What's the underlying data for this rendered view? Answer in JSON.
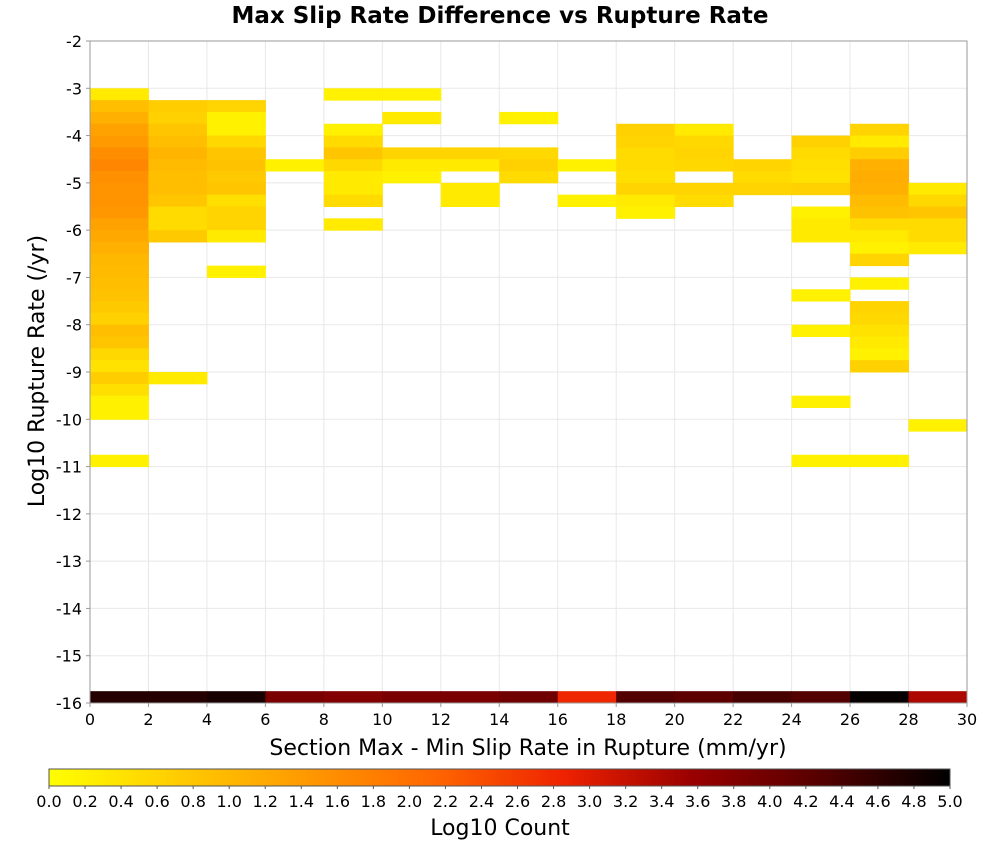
{
  "chart_data": {
    "type": "heatmap",
    "title": "Max Slip Rate Difference vs Rupture Rate",
    "xlabel": "Section Max - Min Slip Rate in Rupture (mm/yr)",
    "ylabel": "Log10 Rupture Rate (/yr)",
    "xlim": [
      0,
      30
    ],
    "ylim": [
      -16,
      -2
    ],
    "x_ticks": [
      "0",
      "2",
      "4",
      "6",
      "8",
      "10",
      "12",
      "14",
      "16",
      "18",
      "20",
      "22",
      "24",
      "26",
      "28",
      "30"
    ],
    "y_ticks": [
      "-2",
      "-3",
      "-4",
      "-5",
      "-6",
      "-7",
      "-8",
      "-9",
      "-10",
      "-11",
      "-12",
      "-13",
      "-14",
      "-15",
      "-16"
    ],
    "grid": true,
    "x_bin_width": 2,
    "y_bin_height": 0.25,
    "colorbar": {
      "label": "Log10 Count",
      "min": 0.0,
      "max": 5.0,
      "ticks": [
        "0.0",
        "0.2",
        "0.4",
        "0.6",
        "0.8",
        "1.0",
        "1.2",
        "1.4",
        "1.6",
        "1.8",
        "2.0",
        "2.2",
        "2.4",
        "2.6",
        "2.8",
        "3.0",
        "3.2",
        "3.4",
        "3.6",
        "3.8",
        "4.0",
        "4.2",
        "4.4",
        "4.6",
        "4.8",
        "5.0"
      ],
      "colors": [
        "#ffff00",
        "#ffcc00",
        "#ff9900",
        "#ff6600",
        "#ee2200",
        "#990000",
        "#550000",
        "#000000"
      ]
    },
    "cells": [
      {
        "x": 0,
        "y": -3.125,
        "v": 0.3
      },
      {
        "x": 0,
        "y": -3.375,
        "v": 0.9
      },
      {
        "x": 0,
        "y": -3.625,
        "v": 1.1
      },
      {
        "x": 0,
        "y": -3.875,
        "v": 1.3
      },
      {
        "x": 0,
        "y": -4.125,
        "v": 1.4
      },
      {
        "x": 0,
        "y": -4.375,
        "v": 1.6
      },
      {
        "x": 0,
        "y": -4.625,
        "v": 1.7
      },
      {
        "x": 0,
        "y": -4.875,
        "v": 1.55
      },
      {
        "x": 0,
        "y": -5.125,
        "v": 1.5
      },
      {
        "x": 0,
        "y": -5.375,
        "v": 1.5
      },
      {
        "x": 0,
        "y": -5.625,
        "v": 1.45
      },
      {
        "x": 0,
        "y": -5.875,
        "v": 1.3
      },
      {
        "x": 0,
        "y": -6.125,
        "v": 1.2
      },
      {
        "x": 0,
        "y": -6.375,
        "v": 1.1
      },
      {
        "x": 0,
        "y": -6.625,
        "v": 1.0
      },
      {
        "x": 0,
        "y": -6.875,
        "v": 0.95
      },
      {
        "x": 0,
        "y": -7.125,
        "v": 0.9
      },
      {
        "x": 0,
        "y": -7.375,
        "v": 0.85
      },
      {
        "x": 0,
        "y": -7.625,
        "v": 0.75
      },
      {
        "x": 0,
        "y": -7.875,
        "v": 0.65
      },
      {
        "x": 0,
        "y": -8.125,
        "v": 0.9
      },
      {
        "x": 0,
        "y": -8.375,
        "v": 0.8
      },
      {
        "x": 0,
        "y": -8.625,
        "v": 0.55
      },
      {
        "x": 0,
        "y": -8.875,
        "v": 0.4
      },
      {
        "x": 0,
        "y": -9.125,
        "v": 0.7
      },
      {
        "x": 0,
        "y": -9.375,
        "v": 0.45
      },
      {
        "x": 0,
        "y": -9.625,
        "v": 0.2
      },
      {
        "x": 0,
        "y": -9.875,
        "v": 0.2
      },
      {
        "x": 0,
        "y": -10.875,
        "v": 0.2
      },
      {
        "x": 2,
        "y": -3.375,
        "v": 0.7
      },
      {
        "x": 2,
        "y": -3.625,
        "v": 0.65
      },
      {
        "x": 2,
        "y": -3.875,
        "v": 0.8
      },
      {
        "x": 2,
        "y": -4.125,
        "v": 0.9
      },
      {
        "x": 2,
        "y": -4.375,
        "v": 1.05
      },
      {
        "x": 2,
        "y": -4.625,
        "v": 0.95
      },
      {
        "x": 2,
        "y": -4.875,
        "v": 0.9
      },
      {
        "x": 2,
        "y": -5.125,
        "v": 0.9
      },
      {
        "x": 2,
        "y": -5.375,
        "v": 0.8
      },
      {
        "x": 2,
        "y": -5.625,
        "v": 0.5
      },
      {
        "x": 2,
        "y": -5.875,
        "v": 0.5
      },
      {
        "x": 2,
        "y": -6.125,
        "v": 0.75
      },
      {
        "x": 2,
        "y": -9.125,
        "v": 0.3
      },
      {
        "x": 4,
        "y": -3.375,
        "v": 0.6
      },
      {
        "x": 4,
        "y": -3.625,
        "v": 0.2
      },
      {
        "x": 4,
        "y": -3.875,
        "v": 0.2
      },
      {
        "x": 4,
        "y": -4.125,
        "v": 0.55
      },
      {
        "x": 4,
        "y": -4.375,
        "v": 0.8
      },
      {
        "x": 4,
        "y": -4.625,
        "v": 0.85
      },
      {
        "x": 4,
        "y": -4.875,
        "v": 0.75
      },
      {
        "x": 4,
        "y": -5.125,
        "v": 0.8
      },
      {
        "x": 4,
        "y": -5.375,
        "v": 0.45
      },
      {
        "x": 4,
        "y": -5.625,
        "v": 0.6
      },
      {
        "x": 4,
        "y": -5.875,
        "v": 0.6
      },
      {
        "x": 4,
        "y": -6.125,
        "v": 0.3
      },
      {
        "x": 4,
        "y": -6.875,
        "v": 0.2
      },
      {
        "x": 6,
        "y": -4.625,
        "v": 0.2
      },
      {
        "x": 8,
        "y": -3.125,
        "v": 0.2
      },
      {
        "x": 8,
        "y": -3.875,
        "v": 0.2
      },
      {
        "x": 8,
        "y": -4.125,
        "v": 0.5
      },
      {
        "x": 8,
        "y": -4.375,
        "v": 0.8
      },
      {
        "x": 8,
        "y": -4.625,
        "v": 0.55
      },
      {
        "x": 8,
        "y": -4.875,
        "v": 0.3
      },
      {
        "x": 8,
        "y": -5.125,
        "v": 0.3
      },
      {
        "x": 8,
        "y": -5.375,
        "v": 0.5
      },
      {
        "x": 8,
        "y": -5.875,
        "v": 0.3
      },
      {
        "x": 10,
        "y": -3.125,
        "v": 0.2
      },
      {
        "x": 10,
        "y": -3.625,
        "v": 0.3
      },
      {
        "x": 10,
        "y": -4.375,
        "v": 0.6
      },
      {
        "x": 10,
        "y": -4.625,
        "v": 0.3
      },
      {
        "x": 10,
        "y": -4.875,
        "v": 0.2
      },
      {
        "x": 12,
        "y": -4.375,
        "v": 0.6
      },
      {
        "x": 12,
        "y": -4.625,
        "v": 0.3
      },
      {
        "x": 12,
        "y": -5.125,
        "v": 0.3
      },
      {
        "x": 12,
        "y": -5.375,
        "v": 0.3
      },
      {
        "x": 14,
        "y": -3.625,
        "v": 0.2
      },
      {
        "x": 14,
        "y": -4.375,
        "v": 0.55
      },
      {
        "x": 14,
        "y": -4.625,
        "v": 0.65
      },
      {
        "x": 14,
        "y": -4.875,
        "v": 0.5
      },
      {
        "x": 16,
        "y": -4.625,
        "v": 0.2
      },
      {
        "x": 16,
        "y": -5.375,
        "v": 0.2
      },
      {
        "x": 18,
        "y": -3.875,
        "v": 0.65
      },
      {
        "x": 18,
        "y": -4.125,
        "v": 0.6
      },
      {
        "x": 18,
        "y": -4.375,
        "v": 0.5
      },
      {
        "x": 18,
        "y": -4.625,
        "v": 0.5
      },
      {
        "x": 18,
        "y": -4.875,
        "v": 0.45
      },
      {
        "x": 18,
        "y": -5.125,
        "v": 0.6
      },
      {
        "x": 18,
        "y": -5.375,
        "v": 0.3
      },
      {
        "x": 18,
        "y": -5.625,
        "v": 0.2
      },
      {
        "x": 20,
        "y": -3.875,
        "v": 0.3
      },
      {
        "x": 20,
        "y": -4.125,
        "v": 0.55
      },
      {
        "x": 20,
        "y": -4.375,
        "v": 0.6
      },
      {
        "x": 20,
        "y": -4.625,
        "v": 0.55
      },
      {
        "x": 20,
        "y": -5.125,
        "v": 0.6
      },
      {
        "x": 20,
        "y": -5.375,
        "v": 0.5
      },
      {
        "x": 22,
        "y": -4.625,
        "v": 0.6
      },
      {
        "x": 22,
        "y": -4.875,
        "v": 0.5
      },
      {
        "x": 22,
        "y": -5.125,
        "v": 0.6
      },
      {
        "x": 24,
        "y": -4.125,
        "v": 0.65
      },
      {
        "x": 24,
        "y": -4.375,
        "v": 0.5
      },
      {
        "x": 24,
        "y": -4.625,
        "v": 0.45
      },
      {
        "x": 24,
        "y": -4.875,
        "v": 0.4
      },
      {
        "x": 24,
        "y": -5.125,
        "v": 0.65
      },
      {
        "x": 24,
        "y": -5.625,
        "v": 0.2
      },
      {
        "x": 24,
        "y": -5.875,
        "v": 0.3
      },
      {
        "x": 24,
        "y": -6.125,
        "v": 0.3
      },
      {
        "x": 24,
        "y": -7.375,
        "v": 0.2
      },
      {
        "x": 24,
        "y": -8.125,
        "v": 0.2
      },
      {
        "x": 24,
        "y": -9.625,
        "v": 0.2
      },
      {
        "x": 24,
        "y": -10.875,
        "v": 0.2
      },
      {
        "x": 26,
        "y": -3.875,
        "v": 0.6
      },
      {
        "x": 26,
        "y": -4.125,
        "v": 0.3
      },
      {
        "x": 26,
        "y": -4.375,
        "v": 0.7
      },
      {
        "x": 26,
        "y": -4.625,
        "v": 1.1
      },
      {
        "x": 26,
        "y": -4.875,
        "v": 1.15
      },
      {
        "x": 26,
        "y": -5.125,
        "v": 1.1
      },
      {
        "x": 26,
        "y": -5.375,
        "v": 0.95
      },
      {
        "x": 26,
        "y": -5.625,
        "v": 0.85
      },
      {
        "x": 26,
        "y": -5.875,
        "v": 0.5
      },
      {
        "x": 26,
        "y": -6.125,
        "v": 0.3
      },
      {
        "x": 26,
        "y": -6.375,
        "v": 0.2
      },
      {
        "x": 26,
        "y": -6.625,
        "v": 0.6
      },
      {
        "x": 26,
        "y": -7.125,
        "v": 0.2
      },
      {
        "x": 26,
        "y": -7.625,
        "v": 0.6
      },
      {
        "x": 26,
        "y": -7.875,
        "v": 0.55
      },
      {
        "x": 26,
        "y": -8.125,
        "v": 0.4
      },
      {
        "x": 26,
        "y": -8.375,
        "v": 0.3
      },
      {
        "x": 26,
        "y": -8.625,
        "v": 0.2
      },
      {
        "x": 26,
        "y": -8.875,
        "v": 0.65
      },
      {
        "x": 26,
        "y": -10.875,
        "v": 0.2
      },
      {
        "x": 28,
        "y": -5.125,
        "v": 0.3
      },
      {
        "x": 28,
        "y": -5.375,
        "v": 0.55
      },
      {
        "x": 28,
        "y": -5.625,
        "v": 0.8
      },
      {
        "x": 28,
        "y": -5.875,
        "v": 0.5
      },
      {
        "x": 28,
        "y": -6.125,
        "v": 0.5
      },
      {
        "x": 28,
        "y": -6.375,
        "v": 0.3
      },
      {
        "x": 28,
        "y": -10.125,
        "v": 0.2
      }
    ],
    "bottom_row": [
      {
        "x": 0,
        "v": 4.7
      },
      {
        "x": 2,
        "v": 4.7
      },
      {
        "x": 4,
        "v": 4.8
      },
      {
        "x": 6,
        "v": 3.9
      },
      {
        "x": 8,
        "v": 3.8
      },
      {
        "x": 10,
        "v": 3.9
      },
      {
        "x": 12,
        "v": 3.9
      },
      {
        "x": 14,
        "v": 4.0
      },
      {
        "x": 16,
        "v": 2.8
      },
      {
        "x": 18,
        "v": 4.3
      },
      {
        "x": 20,
        "v": 4.2
      },
      {
        "x": 22,
        "v": 4.4
      },
      {
        "x": 24,
        "v": 4.3
      },
      {
        "x": 26,
        "v": 4.95
      },
      {
        "x": 28,
        "v": 3.4
      }
    ]
  }
}
